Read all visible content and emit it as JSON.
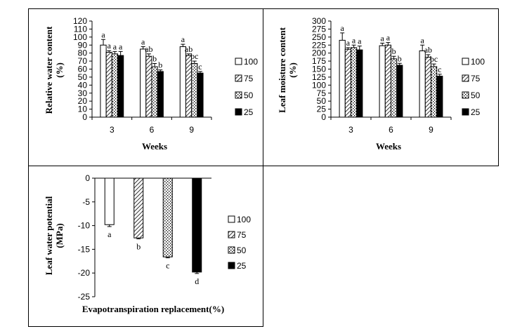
{
  "chart_data": [
    {
      "type": "bar",
      "title": "",
      "xlabel": "Weeks",
      "ylabel_line1": "Relative water content",
      "ylabel_line2": "(%)",
      "categories": [
        "3",
        "6",
        "9"
      ],
      "ylim": [
        0,
        120
      ],
      "yticks": [
        "0",
        "10",
        "20",
        "30",
        "40",
        "50",
        "60",
        "70",
        "80",
        "90",
        "100",
        "110",
        "120"
      ],
      "series": [
        {
          "name": "100",
          "values": [
            90,
            85,
            88
          ],
          "errors": [
            7,
            3,
            3
          ],
          "letters": [
            "a",
            "a",
            "a"
          ]
        },
        {
          "name": "75",
          "values": [
            81,
            76,
            77
          ],
          "errors": [
            2,
            3,
            2
          ],
          "letters": [
            "a",
            "ab",
            "ab"
          ]
        },
        {
          "name": "50",
          "values": [
            79,
            63,
            67
          ],
          "errors": [
            3,
            4,
            3
          ],
          "letters": [
            "a",
            "b",
            "bc"
          ]
        },
        {
          "name": "25",
          "values": [
            77,
            57,
            55
          ],
          "errors": [
            5,
            2,
            2
          ],
          "letters": [
            "a",
            "b",
            "c"
          ]
        }
      ]
    },
    {
      "type": "bar",
      "title": "",
      "xlabel": "Weeks",
      "ylabel_line1": "Leaf moisture content",
      "ylabel_line2": "(%)",
      "categories": [
        "3",
        "6",
        "9"
      ],
      "ylim": [
        0,
        300
      ],
      "yticks": [
        "0",
        "25",
        "50",
        "75",
        "100",
        "125",
        "150",
        "175",
        "200",
        "225",
        "250",
        "275",
        "300"
      ],
      "series": [
        {
          "name": "100",
          "values": [
            240,
            223,
            207
          ],
          "errors": [
            23,
            8,
            18
          ],
          "letters": [
            "a",
            "a",
            "a"
          ]
        },
        {
          "name": "75",
          "values": [
            212,
            225,
            187
          ],
          "errors": [
            5,
            8,
            8
          ],
          "letters": [
            "a",
            "a",
            "ab"
          ]
        },
        {
          "name": "50",
          "values": [
            217,
            182,
            158
          ],
          "errors": [
            8,
            8,
            8
          ],
          "letters": [
            "a",
            "b",
            "bc"
          ]
        },
        {
          "name": "25",
          "values": [
            210,
            162,
            128
          ],
          "errors": [
            12,
            6,
            6
          ],
          "letters": [
            "a",
            "b",
            "c"
          ]
        }
      ]
    },
    {
      "type": "bar",
      "title": "",
      "xlabel": "Evapotranspiration replacement(%)",
      "ylabel_line1": "Leaf water potential",
      "ylabel_line2": "(MPa)",
      "categories": [
        "100",
        "75",
        "50",
        "25"
      ],
      "ylim": [
        -25,
        0
      ],
      "yticks": [
        "0",
        "-5",
        "-10",
        "-15",
        "-20",
        "-25"
      ],
      "series": [
        {
          "name": "Leaf water potential",
          "values": [
            -9.8,
            -12.6,
            -16.6,
            -19.8
          ],
          "errors": [
            0.4,
            0.2,
            0.2,
            0.3
          ],
          "letters": [
            "a",
            "b",
            "c",
            "d"
          ]
        }
      ],
      "legend": [
        "100",
        "75",
        "50",
        "25"
      ]
    }
  ]
}
